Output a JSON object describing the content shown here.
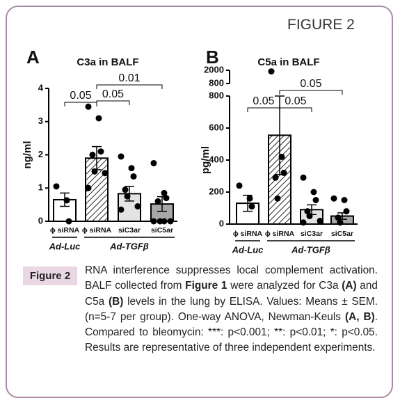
{
  "header": "FIGURE 2",
  "chart_data": [
    {
      "type": "bar",
      "panel_label": "A",
      "title": "C3a in BALF",
      "ylabel": "ng/ml",
      "categories": [
        "ϕ siRNA",
        "ϕ siRNA",
        "siC3ar",
        "siC5ar"
      ],
      "groups": [
        "Ad-Luc",
        "Ad-TGFβ",
        "Ad-TGFβ",
        "Ad-TGFβ"
      ],
      "values": [
        0.65,
        1.9,
        0.83,
        0.52
      ],
      "errors": [
        0.2,
        0.35,
        0.22,
        0.22
      ],
      "points": [
        [
          1.05,
          0.63,
          0
        ],
        [
          3.45,
          3.1,
          2.1,
          2.0,
          1.5,
          1.45,
          1.0
        ],
        [
          1.95,
          1.6,
          1.35,
          0.95,
          0.75,
          0.45,
          0.35
        ],
        [
          1.75,
          0.85,
          0.7,
          0.6,
          0,
          0,
          0,
          0
        ]
      ],
      "bar_colors": [
        "#ffffff",
        "#ffffff",
        "#e3e3e3",
        "#a8a8a8"
      ],
      "hatched": [
        false,
        true,
        false,
        false
      ],
      "ylim": [
        0,
        4
      ],
      "yticks": [
        0,
        1,
        2,
        3,
        4
      ],
      "annotations": [
        {
          "text": "0.05",
          "between": [
            0,
            1
          ]
        },
        {
          "text": "0.05",
          "between": [
            1,
            2
          ]
        },
        {
          "text": "0.01",
          "between": [
            1,
            3
          ]
        }
      ]
    },
    {
      "type": "bar",
      "panel_label": "B",
      "title": "C5a in BALF",
      "ylabel": "pg/ml",
      "categories": [
        "ϕ siRNA",
        "ϕ siRNA",
        "siC3ar",
        "siC5ar"
      ],
      "groups": [
        "Ad-Luc",
        "Ad-TGFβ",
        "Ad-TGFβ",
        "Ad-TGFβ"
      ],
      "values": [
        130,
        555,
        90,
        50
      ],
      "errors": [
        50,
        245,
        30,
        20
      ],
      "points": [
        [
          240,
          160,
          110
        ],
        [
          1900,
          420,
          320,
          290,
          160
        ],
        [
          290,
          200,
          150,
          80,
          50,
          20,
          10
        ],
        [
          160,
          150,
          80,
          40,
          10
        ]
      ],
      "bar_colors": [
        "#ffffff",
        "#ffffff",
        "#e3e3e3",
        "#a8a8a8"
      ],
      "hatched": [
        false,
        true,
        false,
        false
      ],
      "ylim": [
        0,
        800
      ],
      "yticks": [
        0,
        200,
        400,
        600,
        800
      ],
      "ylim_upper": [
        800,
        2000
      ],
      "yticks_upper": [
        800,
        2000
      ],
      "annotations": [
        {
          "text": "0.05",
          "between": [
            0,
            1
          ]
        },
        {
          "text": "0.05",
          "between": [
            1,
            2
          ]
        },
        {
          "text": "0.05",
          "between": [
            1,
            3
          ]
        }
      ]
    }
  ],
  "caption": {
    "label": "Figure 2",
    "runs": [
      {
        "text": "RNA interference suppresses local complement activation. BALF collected from ",
        "bold": false
      },
      {
        "text": "Figure 1",
        "bold": true
      },
      {
        "text": " were analyzed for C3a ",
        "bold": false
      },
      {
        "text": "(A)",
        "bold": true
      },
      {
        "text": " and C5a ",
        "bold": false
      },
      {
        "text": "(B)",
        "bold": true
      },
      {
        "text": " levels in the lung by ELISA. Values: Means ± SEM. (n=5-7 per group). One-way ANOVA, Newman-Keuls ",
        "bold": false
      },
      {
        "text": "(A, B)",
        "bold": true
      },
      {
        "text": ". Compared to bleomycin: ***: p<0.001; **: p<0.01; *: p<0.05. Results are representative of three independent experiments.",
        "bold": false
      }
    ]
  }
}
